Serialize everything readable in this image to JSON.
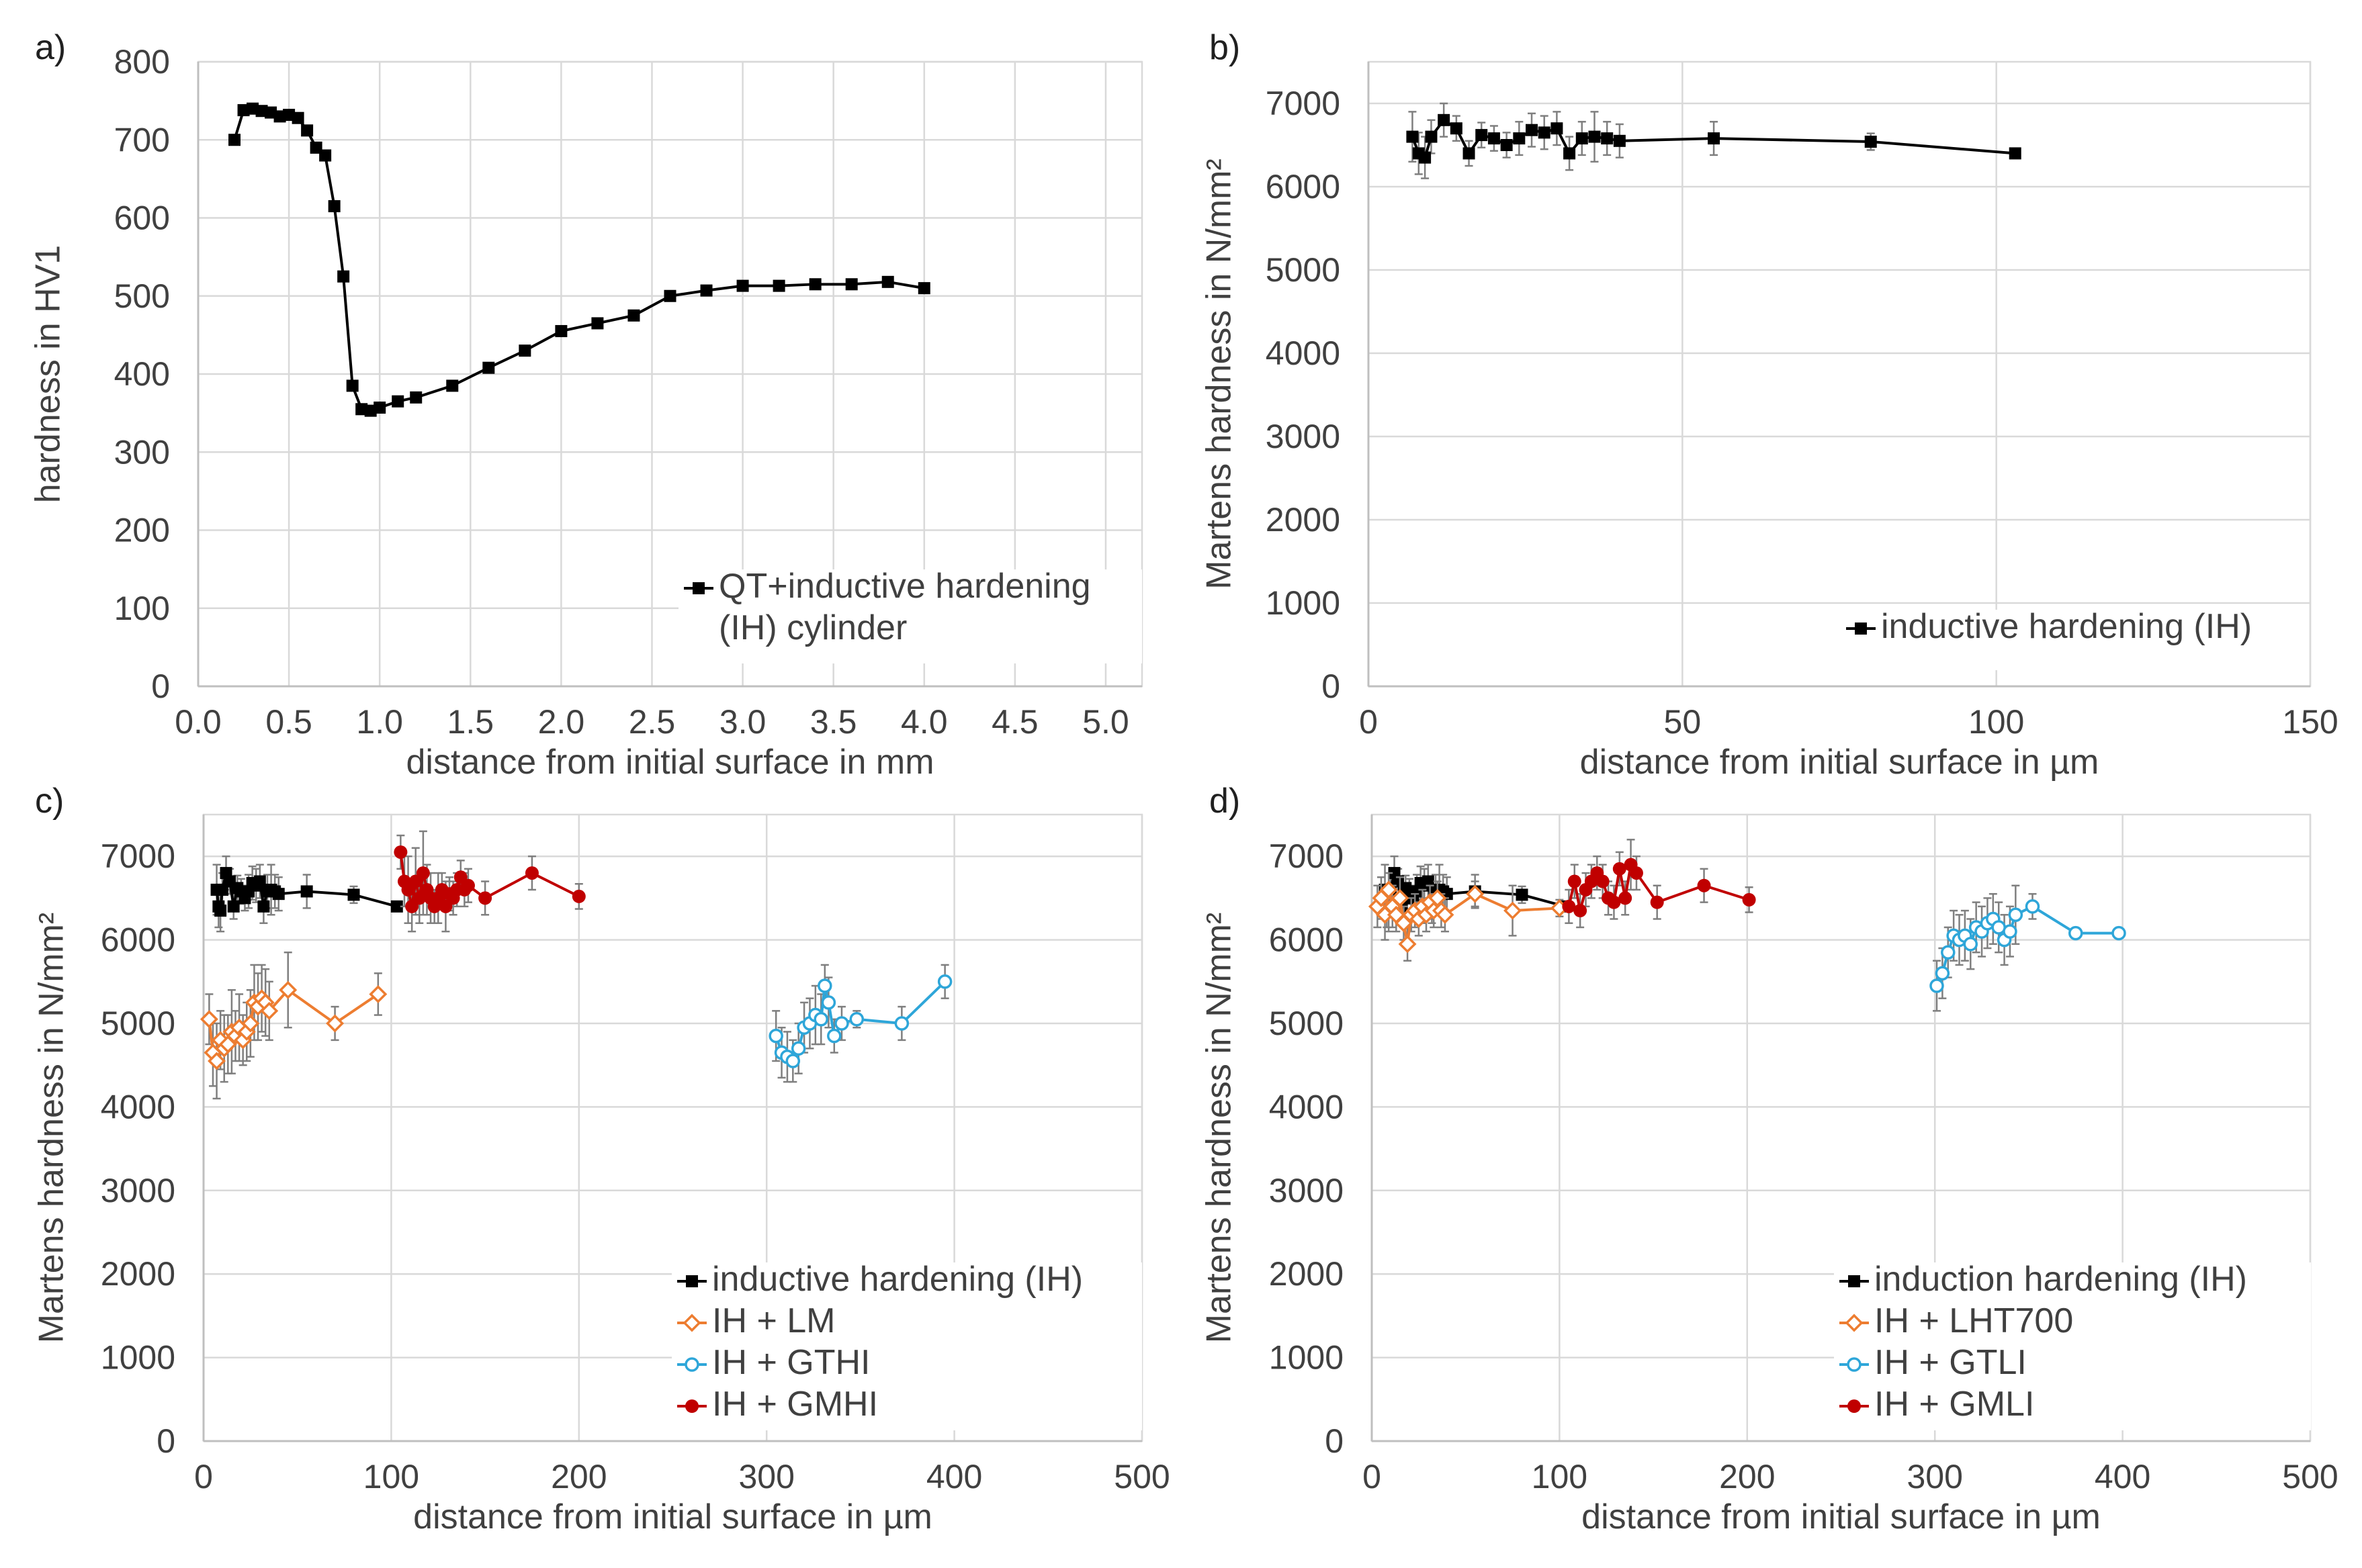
{
  "chart_data": [
    {
      "panel_label": "a)",
      "type": "line",
      "xlabel": "distance from initial surface in mm",
      "ylabel": "hardness in HV1",
      "xlim": [
        0,
        5.2
      ],
      "ylim": [
        0,
        800
      ],
      "xticks": [
        0.0,
        0.5,
        1.0,
        1.5,
        2.0,
        2.5,
        3.0,
        3.5,
        4.0,
        4.5,
        5.0
      ],
      "xtick_labels": [
        "0.0",
        "0.5",
        "1.0",
        "1.5",
        "2.0",
        "2.5",
        "3.0",
        "3.5",
        "4.0",
        "4.5",
        "5.0"
      ],
      "yticks": [
        0,
        100,
        200,
        300,
        400,
        500,
        600,
        700,
        800
      ],
      "ytick_labels": [
        "0",
        "100",
        "200",
        "300",
        "400",
        "500",
        "600",
        "700",
        "800"
      ],
      "legend_position": "bottom-right",
      "series": [
        {
          "name": "QT+inductive hardening (IH) cylinder",
          "legend_lines": [
            "QT+inductive hardening",
            "(IH) cylinder"
          ],
          "color": "#000000",
          "marker": "square",
          "x": [
            0.2,
            0.25,
            0.3,
            0.35,
            0.4,
            0.45,
            0.5,
            0.55,
            0.6,
            0.65,
            0.7,
            0.75,
            0.8,
            0.85,
            0.9,
            0.95,
            1.0,
            1.1,
            1.2,
            1.4,
            1.6,
            1.8,
            2.0,
            2.2,
            2.4,
            2.6,
            2.8,
            3.0,
            3.2,
            3.4,
            3.6,
            3.8,
            4.0
          ],
          "y": [
            700,
            738,
            740,
            737,
            735,
            730,
            732,
            728,
            712,
            690,
            680,
            615,
            525,
            385,
            355,
            353,
            357,
            365,
            370,
            385,
            408,
            430,
            455,
            465,
            475,
            500,
            507,
            513,
            513,
            515,
            515,
            518,
            510
          ]
        }
      ]
    },
    {
      "panel_label": "b)",
      "type": "line",
      "xlabel": "distance from initial surface in µm",
      "ylabel": "Martens hardness in N/mm²",
      "xlim": [
        0,
        150
      ],
      "ylim": [
        0,
        7500
      ],
      "xticks": [
        0,
        50,
        100,
        150
      ],
      "xtick_labels": [
        "0",
        "50",
        "100",
        "150"
      ],
      "yticks": [
        0,
        1000,
        2000,
        3000,
        4000,
        5000,
        6000,
        7000
      ],
      "ytick_labels": [
        "0",
        "1000",
        "2000",
        "3000",
        "4000",
        "5000",
        "6000",
        "7000"
      ],
      "legend_position": "bottom-right",
      "series": [
        {
          "name": "inductive hardening (IH)",
          "color": "#000000",
          "marker": "square",
          "x": [
            7,
            8,
            9,
            10,
            12,
            14,
            16,
            18,
            20,
            22,
            24,
            26,
            28,
            30,
            32,
            34,
            36,
            38,
            40,
            55,
            80,
            103
          ],
          "y": [
            6600,
            6400,
            6350,
            6600,
            6800,
            6700,
            6400,
            6620,
            6580,
            6500,
            6580,
            6680,
            6650,
            6700,
            6400,
            6580,
            6600,
            6580,
            6550,
            6580,
            6540,
            6400
          ],
          "err": [
            300,
            250,
            250,
            200,
            200,
            150,
            150,
            150,
            150,
            150,
            200,
            200,
            200,
            200,
            200,
            200,
            300,
            200,
            200,
            200,
            100,
            50
          ]
        }
      ]
    },
    {
      "panel_label": "c)",
      "type": "line",
      "xlabel": "distance from initial surface in µm",
      "ylabel": "Martens hardness in N/mm²",
      "xlim": [
        0,
        500
      ],
      "ylim": [
        0,
        7500
      ],
      "xticks": [
        0,
        100,
        200,
        300,
        400,
        500
      ],
      "xtick_labels": [
        "0",
        "100",
        "200",
        "300",
        "400",
        "500"
      ],
      "yticks": [
        0,
        1000,
        2000,
        3000,
        4000,
        5000,
        6000,
        7000
      ],
      "ytick_labels": [
        "0",
        "1000",
        "2000",
        "3000",
        "4000",
        "5000",
        "6000",
        "7000"
      ],
      "legend_position": "bottom-right",
      "series": [
        {
          "name": "inductive hardening (IH)",
          "color": "#000000",
          "marker": "square",
          "x": [
            7,
            8,
            9,
            10,
            12,
            14,
            16,
            18,
            20,
            22,
            24,
            26,
            28,
            30,
            32,
            34,
            36,
            38,
            40,
            55,
            80,
            103
          ],
          "y": [
            6600,
            6400,
            6350,
            6600,
            6800,
            6700,
            6400,
            6620,
            6580,
            6500,
            6580,
            6680,
            6650,
            6700,
            6400,
            6580,
            6600,
            6580,
            6550,
            6580,
            6540,
            6400
          ],
          "err": [
            300,
            250,
            250,
            200,
            200,
            150,
            150,
            150,
            150,
            150,
            200,
            200,
            200,
            200,
            200,
            200,
            300,
            200,
            200,
            200,
            100,
            50
          ]
        },
        {
          "name": "IH + LM",
          "color": "#ed7d31",
          "marker": "diamond-open",
          "x": [
            3,
            5,
            7,
            9,
            11,
            13,
            15,
            17,
            19,
            21,
            23,
            25,
            27,
            29,
            31,
            33,
            35,
            45,
            70,
            93
          ],
          "y": [
            5050,
            4650,
            4550,
            4800,
            4700,
            4750,
            4900,
            4850,
            4950,
            4800,
            4900,
            5000,
            5250,
            5200,
            5300,
            5250,
            5150,
            5400,
            5000,
            5350
          ],
          "err": [
            300,
            400,
            450,
            350,
            400,
            350,
            500,
            300,
            400,
            300,
            350,
            400,
            450,
            400,
            400,
            400,
            350,
            450,
            200,
            250
          ]
        },
        {
          "name": "IH + GTHI",
          "color": "#2ea6d9",
          "marker": "circle-open",
          "x": [
            305,
            308,
            311,
            314,
            317,
            320,
            323,
            326,
            329,
            331,
            333,
            336,
            340,
            348,
            372,
            395
          ],
          "y": [
            4850,
            4650,
            4600,
            4550,
            4700,
            4950,
            5000,
            5100,
            5050,
            5450,
            5250,
            4850,
            5000,
            5050,
            5000,
            5500
          ],
          "err": [
            300,
            300,
            300,
            250,
            300,
            300,
            300,
            350,
            300,
            250,
            300,
            200,
            200,
            100,
            200,
            200
          ]
        },
        {
          "name": "IH + GMHI",
          "color": "#c00000",
          "marker": "circle",
          "x": [
            105,
            107,
            109,
            111,
            113,
            115,
            117,
            119,
            121,
            123,
            125,
            127,
            129,
            131,
            133,
            135,
            137,
            139,
            141,
            150,
            175,
            200
          ],
          "y": [
            7050,
            6700,
            6600,
            6400,
            6700,
            6500,
            6800,
            6600,
            6500,
            6400,
            6500,
            6600,
            6400,
            6550,
            6500,
            6600,
            6750,
            6600,
            6650,
            6500,
            6800,
            6520
          ],
          "err": [
            200,
            300,
            400,
            300,
            400,
            300,
            500,
            300,
            300,
            200,
            300,
            200,
            300,
            200,
            200,
            200,
            200,
            200,
            200,
            200,
            200,
            150
          ]
        }
      ]
    },
    {
      "panel_label": "d)",
      "type": "line",
      "xlabel": "distance from initial surface in µm",
      "ylabel": "Martens hardness in N/mm²",
      "xlim": [
        0,
        500
      ],
      "ylim": [
        0,
        7500
      ],
      "xticks": [
        0,
        100,
        200,
        300,
        400,
        500
      ],
      "xtick_labels": [
        "0",
        "100",
        "200",
        "300",
        "400",
        "500"
      ],
      "yticks": [
        0,
        1000,
        2000,
        3000,
        4000,
        5000,
        6000,
        7000
      ],
      "ytick_labels": [
        "0",
        "1000",
        "2000",
        "3000",
        "4000",
        "5000",
        "6000",
        "7000"
      ],
      "legend_position": "bottom-right",
      "series": [
        {
          "name": "induction hardening (IH)",
          "color": "#000000",
          "marker": "square",
          "x": [
            7,
            8,
            9,
            10,
            12,
            14,
            16,
            18,
            20,
            22,
            24,
            26,
            28,
            30,
            32,
            34,
            36,
            38,
            40,
            55,
            80,
            103
          ],
          "y": [
            6600,
            6400,
            6350,
            6600,
            6800,
            6700,
            6400,
            6620,
            6580,
            6500,
            6580,
            6680,
            6650,
            6700,
            6400,
            6580,
            6600,
            6580,
            6550,
            6580,
            6540,
            6400
          ],
          "err": [
            300,
            250,
            250,
            200,
            200,
            150,
            150,
            150,
            150,
            150,
            200,
            200,
            200,
            200,
            200,
            200,
            300,
            200,
            200,
            200,
            100,
            50
          ]
        },
        {
          "name": "IH + LHT700",
          "color": "#ed7d31",
          "marker": "diamond-open",
          "x": [
            3,
            5,
            7,
            9,
            11,
            13,
            15,
            17,
            19,
            21,
            23,
            25,
            27,
            29,
            31,
            33,
            35,
            37,
            39,
            55,
            75,
            100
          ],
          "y": [
            6400,
            6500,
            6300,
            6600,
            6400,
            6300,
            6500,
            6200,
            5950,
            6300,
            6350,
            6250,
            6400,
            6300,
            6450,
            6350,
            6500,
            6350,
            6300,
            6550,
            6350,
            6380
          ],
          "err": [
            250,
            250,
            300,
            200,
            250,
            200,
            250,
            200,
            200,
            200,
            200,
            200,
            200,
            200,
            200,
            200,
            200,
            200,
            200,
            150,
            300,
            100
          ]
        },
        {
          "name": "IH + GTLI",
          "color": "#2ea6d9",
          "marker": "circle-open",
          "x": [
            301,
            304,
            307,
            310,
            313,
            316,
            319,
            322,
            325,
            328,
            331,
            334,
            337,
            340,
            343,
            352,
            375,
            398
          ],
          "y": [
            5450,
            5600,
            5850,
            6050,
            6000,
            6050,
            5950,
            6150,
            6100,
            6200,
            6250,
            6150,
            6000,
            6100,
            6300,
            6400,
            6080,
            6080
          ],
          "err": [
            300,
            300,
            300,
            300,
            300,
            300,
            300,
            300,
            300,
            300,
            300,
            300,
            300,
            300,
            350,
            150,
            50,
            50
          ]
        },
        {
          "name": "IH + GMLI",
          "color": "#c00000",
          "marker": "circle",
          "x": [
            105,
            108,
            111,
            114,
            117,
            120,
            123,
            126,
            129,
            132,
            135,
            138,
            141,
            152,
            177,
            201
          ],
          "y": [
            6400,
            6700,
            6350,
            6600,
            6700,
            6800,
            6700,
            6500,
            6450,
            6850,
            6500,
            6900,
            6800,
            6450,
            6650,
            6480
          ],
          "err": [
            200,
            200,
            200,
            200,
            200,
            200,
            200,
            200,
            200,
            200,
            200,
            300,
            200,
            200,
            200,
            150
          ]
        }
      ]
    }
  ]
}
